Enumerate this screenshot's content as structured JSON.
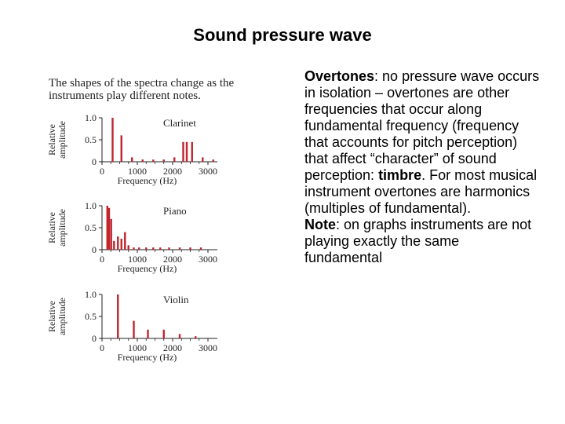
{
  "slide": {
    "title": "Sound pressure wave"
  },
  "figure": {
    "caption": "The shapes of the spectra change as the instruments play different notes.",
    "ylabel": "Relative amplitude",
    "xlabel": "Frequency (Hz)",
    "yticks": [
      "0",
      "0.5",
      "1.0"
    ],
    "xticks": [
      "0",
      "1000",
      "2000",
      "3000"
    ],
    "bar_color": "#c0252e"
  },
  "chart_data": [
    {
      "type": "bar",
      "title": "Clarinet",
      "xlabel": "Frequency (Hz)",
      "ylabel": "Relative amplitude",
      "xlim": [
        0,
        3000
      ],
      "ylim": [
        0,
        1.0
      ],
      "x": [
        300,
        550,
        850,
        1150,
        1450,
        1750,
        2050,
        2300,
        2400,
        2550,
        2850,
        3150
      ],
      "values": [
        1.0,
        0.6,
        0.1,
        0.05,
        0.05,
        0.05,
        0.1,
        0.45,
        0.45,
        0.45,
        0.1,
        0.05
      ]
    },
    {
      "type": "bar",
      "title": "Piano",
      "xlabel": "Frequency (Hz)",
      "ylabel": "Relative amplitude",
      "xlim": [
        0,
        3000
      ],
      "ylim": [
        0,
        1.0
      ],
      "x": [
        150,
        200,
        260,
        340,
        450,
        550,
        650,
        750,
        900,
        1050,
        1250,
        1450,
        1650,
        1900,
        2200,
        2500,
        2800
      ],
      "values": [
        1.0,
        0.95,
        0.7,
        0.2,
        0.3,
        0.25,
        0.4,
        0.1,
        0.05,
        0.05,
        0.05,
        0.05,
        0.05,
        0.05,
        0.05,
        0.05,
        0.05
      ]
    },
    {
      "type": "bar",
      "title": "Violin",
      "xlabel": "Frequency (Hz)",
      "ylabel": "Relative amplitude",
      "xlim": [
        0,
        3000
      ],
      "ylim": [
        0,
        1.0
      ],
      "x": [
        450,
        900,
        1300,
        1750,
        2200,
        2650
      ],
      "values": [
        1.0,
        0.4,
        0.2,
        0.2,
        0.1,
        0.05
      ]
    }
  ],
  "text": {
    "overtones_term": "Overtones",
    "overtones_body": ": no pressure wave occurs in isolation – overtones are other frequencies that occur along fundamental frequency (frequency that accounts for pitch perception) that affect “character” of sound perception: ",
    "timbre_term": "timbre",
    "overtones_tail": ". For most musical instrument overtones are harmonics (multiples of fundamental).",
    "note_term": "Note",
    "note_body": ": on graphs instruments are not playing exactly the same fundamental"
  }
}
